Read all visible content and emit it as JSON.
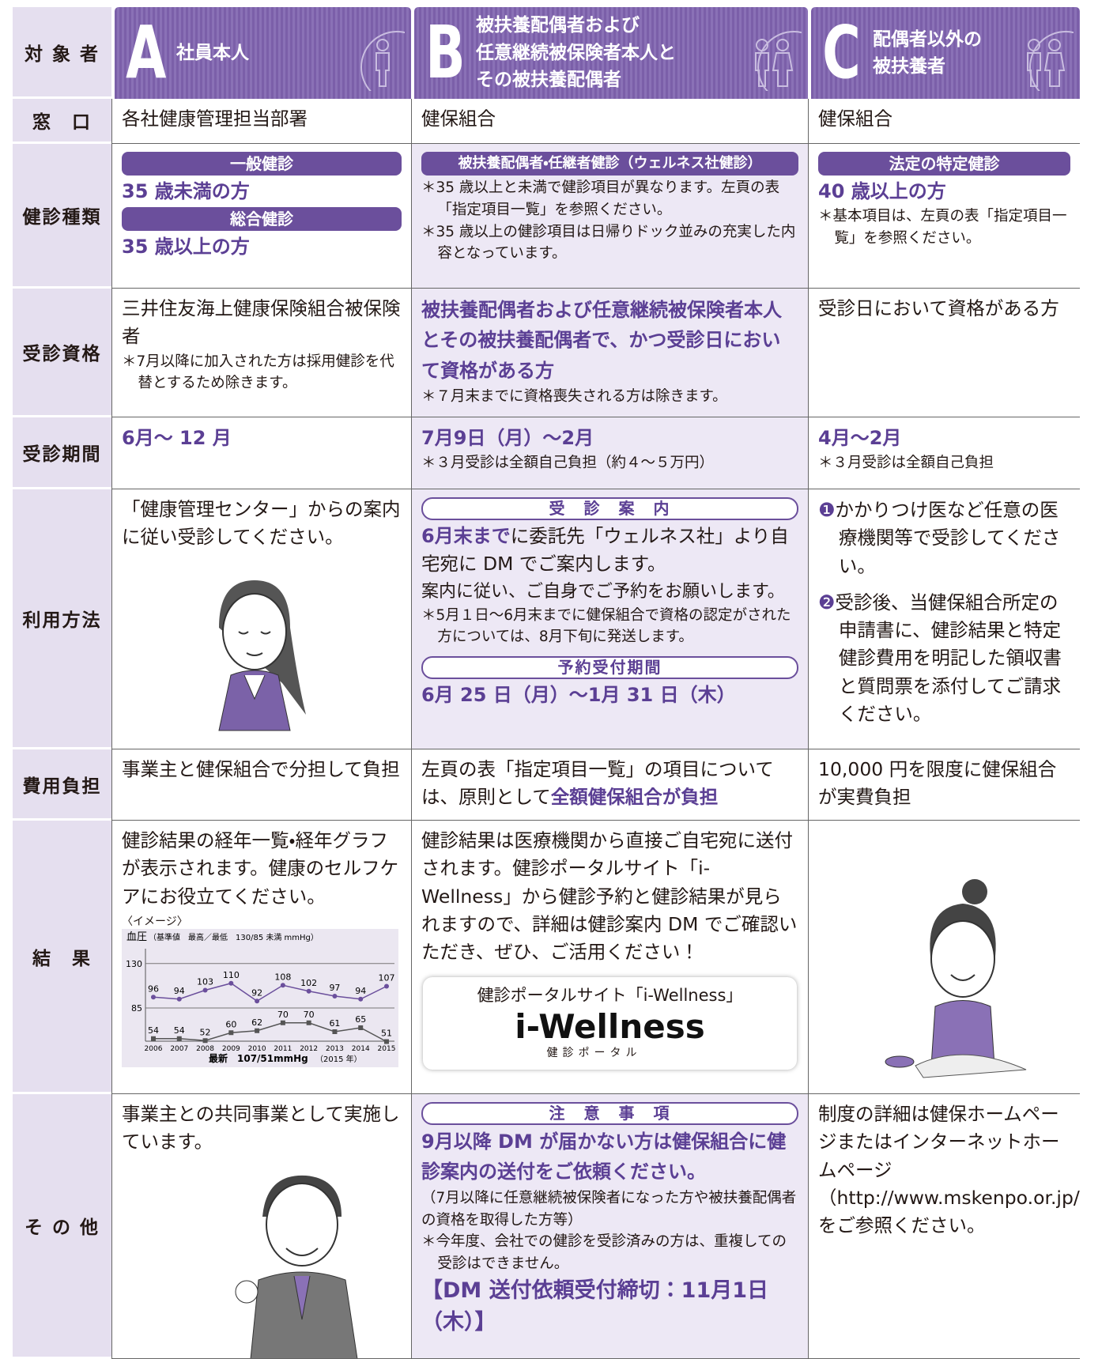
{
  "header": {
    "label": "対 象 者",
    "columns": [
      {
        "letter": "A",
        "title": [
          "社員本人"
        ]
      },
      {
        "letter": "B",
        "title": [
          "被扶養配偶者および",
          "任意継続被保険者本人と",
          "その被扶養配偶者"
        ]
      },
      {
        "letter": "C",
        "title": [
          "配偶者以外の",
          "被扶養者"
        ]
      }
    ]
  },
  "rows": [
    {
      "label": "窓　口",
      "a": [
        "各社健康管理担当部署"
      ],
      "b": [
        "健保組合"
      ],
      "c": [
        "健保組合"
      ]
    },
    {
      "label": "健診種類",
      "a": [
        "一般健診",
        "35 歳未満の方",
        "総合健診",
        "35 歳以上の方"
      ],
      "b": [
        "被扶養配偶者・任継者健診（ウェルネス社健診）",
        "＊35 歳以上と未満で健診項目が異なります。左頁の表「指定項目一覧」を参照ください。",
        "＊35 歳以上の健診項目は日帰りドック並みの充実した内容となっています。"
      ],
      "c": [
        "法定の特定健診",
        "40 歳以上の方",
        "＊基本項目は、左頁の表「指定項目一覧」を参照ください。"
      ]
    },
    {
      "label": "受診資格",
      "a": [
        "三井住友海上健康保険組合被保険者",
        "＊7月以降に加入された方は採用健診を代替とするため除きます。"
      ],
      "b": [
        "被扶養配偶者および任意継続被保険者本人とその被扶養配偶者で、かつ受診日において資格がある方",
        "＊７月末までに資格喪失される方は除きます。"
      ],
      "c": [
        "受診日において資格がある方"
      ]
    },
    {
      "label": "受診期間",
      "a": [
        "6月～ 12 月"
      ],
      "b": [
        "7月9日（月）～2月",
        "＊３月受診は全額自己負担（約４～５万円）"
      ],
      "c": [
        "4月～2月",
        "＊３月受診は全額自己負担"
      ]
    },
    {
      "label": "利用方法",
      "a": [
        "「健康管理センター」からの案内に従い受診してください。"
      ],
      "b": [
        "受　診　案　内",
        "6月末まで",
        "に委託先「ウェルネス社」より自宅宛に DM でご案内します。",
        "案内に従い、ご自身でご予約をお願いします。",
        "＊5月１日～6月末までに健保組合で資格の認定がされた方については、8月下旬に発送します。",
        "予約受付期間",
        "6月 25 日（月）～1月 31 日（木）"
      ],
      "c": [
        "❶",
        "かかりつけ医など任意の医療機関等で受診してください。",
        "❷",
        "受診後、当健保組合所定の申請書に、健診結果と特定健診費用を明記した領収書と質問票を添付してご請求ください。"
      ]
    },
    {
      "label": "費用負担",
      "a": [
        "事業主と健保組合で分担して負担"
      ],
      "b": [
        "左頁の表「指定項目一覧」の項目については、原則として",
        "全額健保組合が負担"
      ],
      "c": [
        "10,000 円を限度に健保組合が実費負担"
      ]
    },
    {
      "label": "結　果",
      "a": [
        "健診結果の経年一覧・経年グラフが表示されます。健康のセルフケアにお役立てください。"
      ],
      "chart": {
        "caption": "〈イメージ〉",
        "title": "血圧",
        "subtitle": "（基準値　最高／最低　130/85 未満 mmHg）",
        "ylim": [
          45,
          145
        ],
        "yticks": [
          85,
          130
        ],
        "x": [
          "2006",
          "2007",
          "2008",
          "2009",
          "2010",
          "2011",
          "2012",
          "2013",
          "2014",
          "2015"
        ],
        "high": [
          96,
          94,
          103,
          110,
          92,
          108,
          102,
          97,
          94,
          107
        ],
        "low": [
          54,
          54,
          52,
          60,
          62,
          70,
          70,
          61,
          65,
          51
        ],
        "footer": "最新　107/51mmHg",
        "footer_note": "（2015 年）"
      },
      "b": [
        "健診結果は医療機関から直接ご自宅宛に送付されます。健診ポータルサイト「i-Wellness」から健診予約と健診結果が見られますので、詳細は健診案内 DM でご確認いただき、ぜひ、ご活用ください！"
      ],
      "portal": {
        "caption": "健診ポータルサイト「i-Wellness」",
        "logo": "i-Wellness",
        "logo_sub": "健診ポータル"
      }
    },
    {
      "label": "そ の 他",
      "a": [
        "事業主との共同事業として実施しています。"
      ],
      "b": [
        "注　意　事　項",
        "9月以降 DM が届かない方は健保組合に健診案内の送付をご依頼ください。",
        "（7月以降に任意継続被保険者になった方や被扶養配偶者の資格を取得した方等）",
        "＊今年度、会社での健診を受診済みの方は、重複しての受診はできません。",
        "【DM 送付依頼受付締切：11月1日（木）】"
      ],
      "c": [
        "制度の詳細は健保ホームページまたはインターネットホームページ（http://www.mskenpo.or.jp/）をご参照ください。"
      ]
    }
  ]
}
